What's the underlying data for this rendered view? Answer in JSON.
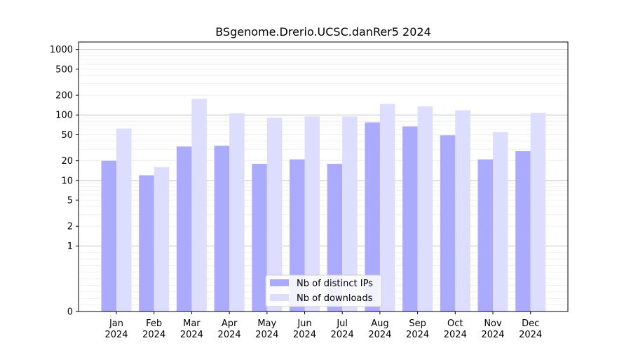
{
  "chart_data": {
    "type": "bar",
    "title": "BSgenome.Drerio.UCSC.danRer5 2024",
    "xlabel": "",
    "ylabel": "",
    "categories": [
      [
        "Jan",
        "2024"
      ],
      [
        "Feb",
        "2024"
      ],
      [
        "Mar",
        "2024"
      ],
      [
        "Apr",
        "2024"
      ],
      [
        "May",
        "2024"
      ],
      [
        "Jun",
        "2024"
      ],
      [
        "Jul",
        "2024"
      ],
      [
        "Aug",
        "2024"
      ],
      [
        "Sep",
        "2024"
      ],
      [
        "Oct",
        "2024"
      ],
      [
        "Nov",
        "2024"
      ],
      [
        "Dec",
        "2024"
      ]
    ],
    "series": [
      {
        "name": "Nb of distinct IPs",
        "color": "#aaaaff",
        "values": [
          20,
          12,
          33,
          34,
          18,
          21,
          18,
          77,
          67,
          49,
          21,
          28
        ]
      },
      {
        "name": "Nb of downloads",
        "color": "#ddddff",
        "values": [
          62,
          16,
          176,
          106,
          91,
          95,
          95,
          147,
          136,
          118,
          55,
          108
        ]
      }
    ],
    "yscale": "symlog",
    "ylim": [
      0,
      1300
    ],
    "yticks": [
      0,
      1,
      2,
      5,
      10,
      20,
      50,
      100,
      200,
      500,
      1000
    ],
    "grid": true,
    "legend_position": "bottom-center"
  }
}
